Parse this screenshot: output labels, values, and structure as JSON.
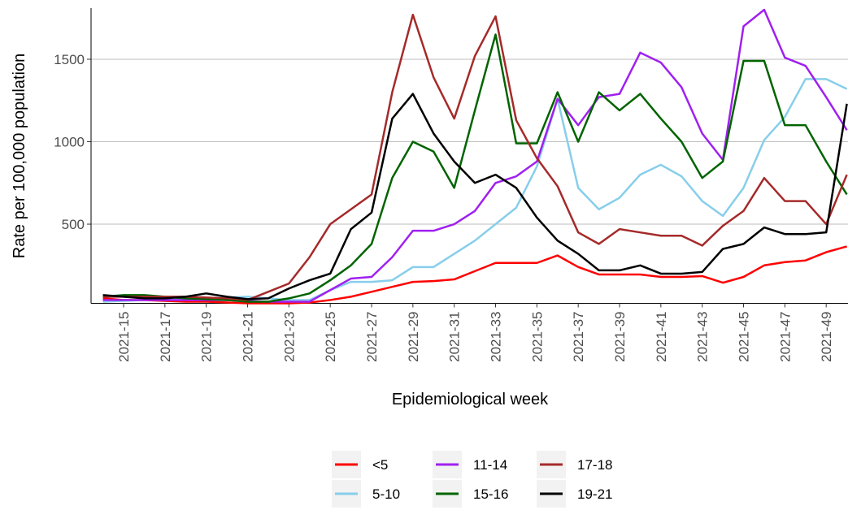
{
  "chart_data": {
    "type": "line",
    "x_label": "Epidemiological week",
    "y_label": "Rate per 100,000 population",
    "categories": [
      null,
      "2021-15",
      null,
      "2021-17",
      null,
      "2021-19",
      null,
      "2021-21",
      null,
      "2021-23",
      null,
      "2021-25",
      null,
      "2021-27",
      null,
      "2021-29",
      null,
      "2021-31",
      null,
      "2021-33",
      null,
      "2021-35",
      null,
      "2021-37",
      null,
      "2021-39",
      null,
      "2021-41",
      null,
      "2021-43",
      null,
      "2021-45",
      null,
      "2021-47",
      null,
      "2021-49",
      null
    ],
    "ylim": [
      20,
      1810
    ],
    "yticks": [
      500,
      1000,
      1500
    ],
    "grid": true,
    "legend": "bottom",
    "series": [
      {
        "name": "<5",
        "color": "#ff0000",
        "values": [
          50,
          40,
          40,
          35,
          30,
          30,
          25,
          20,
          20,
          20,
          25,
          40,
          60,
          90,
          120,
          150,
          155,
          165,
          215,
          265,
          265,
          265,
          310,
          240,
          195,
          195,
          195,
          180,
          180,
          185,
          145,
          180,
          250,
          270,
          280,
          330,
          365
        ]
      },
      {
        "name": "5-10",
        "color": "#87ceeb",
        "values": [
          30,
          35,
          40,
          45,
          45,
          50,
          55,
          60,
          50,
          40,
          40,
          100,
          150,
          150,
          160,
          240,
          240,
          320,
          400,
          500,
          600,
          850,
          1260,
          720,
          590,
          660,
          800,
          860,
          790,
          640,
          550,
          720,
          1010,
          1150,
          1380,
          1380,
          1320
        ]
      },
      {
        "name": "11-14",
        "color": "#a020f0",
        "values": [
          40,
          40,
          40,
          40,
          40,
          40,
          40,
          35,
          30,
          30,
          30,
          100,
          170,
          180,
          300,
          460,
          460,
          500,
          580,
          750,
          790,
          880,
          1260,
          1100,
          1270,
          1290,
          1540,
          1480,
          1330,
          1050,
          890,
          1700,
          1800,
          1510,
          1460,
          1270,
          1070
        ]
      },
      {
        "name": "15-16",
        "color": "#006400",
        "values": [
          60,
          70,
          70,
          60,
          50,
          45,
          40,
          30,
          30,
          50,
          80,
          160,
          250,
          380,
          780,
          1000,
          940,
          720,
          1190,
          1650,
          990,
          990,
          1300,
          1000,
          1300,
          1190,
          1290,
          1140,
          1000,
          780,
          880,
          1490,
          1490,
          1100,
          1100,
          880,
          680
        ]
      },
      {
        "name": "17-18",
        "color": "#a52a2a",
        "values": [
          60,
          60,
          60,
          60,
          60,
          55,
          50,
          40,
          90,
          140,
          300,
          500,
          590,
          680,
          1300,
          1770,
          1390,
          1140,
          1520,
          1760,
          1130,
          900,
          730,
          450,
          380,
          470,
          450,
          430,
          430,
          370,
          490,
          580,
          780,
          640,
          640,
          500,
          800
        ]
      },
      {
        "name": "19-21",
        "color": "#000000",
        "values": [
          70,
          60,
          50,
          50,
          60,
          80,
          60,
          45,
          50,
          110,
          160,
          200,
          470,
          570,
          1140,
          1290,
          1050,
          880,
          750,
          800,
          720,
          540,
          400,
          320,
          220,
          220,
          250,
          200,
          200,
          210,
          350,
          380,
          480,
          440,
          440,
          450,
          1230
        ]
      }
    ]
  }
}
